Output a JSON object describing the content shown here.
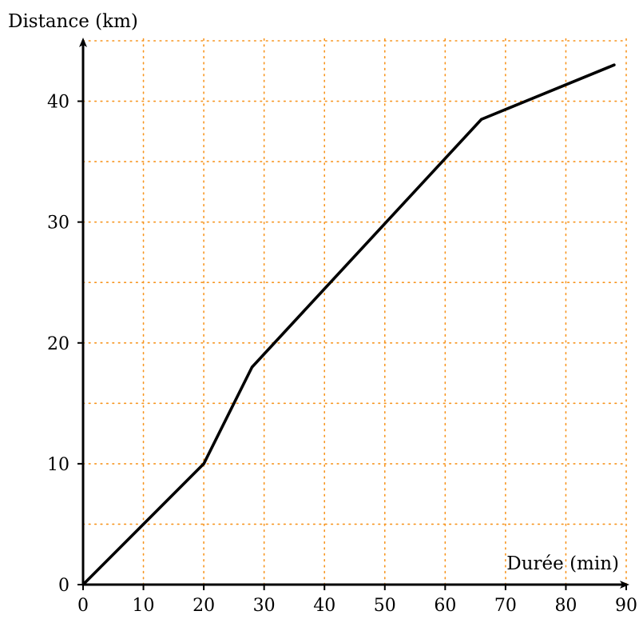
{
  "chart_data": {
    "type": "line",
    "xlabel": "Durée (min)",
    "ylabel": "Distance (km)",
    "xlim": [
      0,
      90
    ],
    "ylim": [
      0,
      45
    ],
    "x_ticks": [
      "0",
      "10",
      "20",
      "30",
      "40",
      "50",
      "60",
      "70",
      "80",
      "90"
    ],
    "y_ticks": [
      "0",
      "10",
      "20",
      "30",
      "40"
    ],
    "grid": true,
    "grid_color": "#f7941d",
    "grid_style": "dotted",
    "series": [
      {
        "color": "#000000",
        "points": [
          {
            "x": 0,
            "y": 0
          },
          {
            "x": 20,
            "y": 10
          },
          {
            "x": 28,
            "y": 18
          },
          {
            "x": 66,
            "y": 38.5
          },
          {
            "x": 88,
            "y": 43
          }
        ]
      }
    ]
  }
}
